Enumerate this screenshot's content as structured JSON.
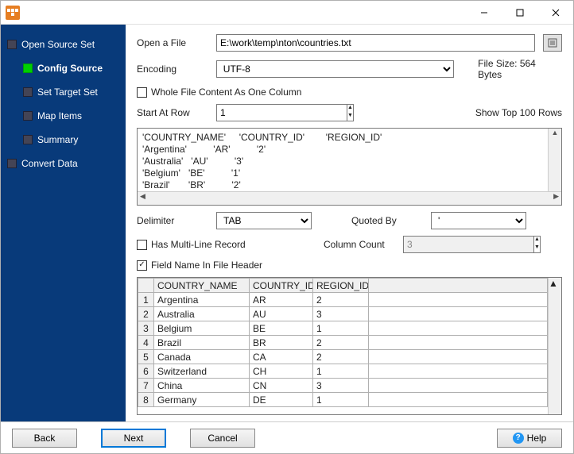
{
  "titlebar": {
    "icon_color": "#e67e22"
  },
  "sidebar": {
    "items": [
      {
        "label": "Open Source Set",
        "type": "root",
        "active": false
      },
      {
        "label": "Config Source",
        "type": "child",
        "active": true
      },
      {
        "label": "Set Target Set",
        "type": "child",
        "active": false
      },
      {
        "label": "Map Items",
        "type": "child",
        "active": false
      },
      {
        "label": "Summary",
        "type": "child",
        "active": false
      },
      {
        "label": "Convert Data",
        "type": "root",
        "active": false
      }
    ]
  },
  "form": {
    "open_file_label": "Open a File",
    "file_path": "E:\\work\\temp\\nton\\countries.txt",
    "encoding_label": "Encoding",
    "encoding_value": "UTF-8",
    "file_size_label": "File Size: 564 Bytes",
    "whole_file_checkbox": "Whole File Content As One Column",
    "whole_file_checked": false,
    "start_row_label": "Start At Row",
    "start_row_value": "1",
    "show_top_label": "Show Top 100 Rows",
    "delimiter_label": "Delimiter",
    "delimiter_value": "TAB",
    "quoted_by_label": "Quoted By",
    "quoted_by_value": "'",
    "multiline_label": "Has Multi-Line Record",
    "multiline_checked": false,
    "column_count_label": "Column Count",
    "column_count_value": "3",
    "field_name_header_label": "Field Name In File Header",
    "field_name_header_checked": true
  },
  "preview_lines": [
    "'COUNTRY_NAME'     'COUNTRY_ID'        'REGION_ID'",
    "'Argentina'          'AR'          '2'",
    "'Australia'   'AU'          '3'",
    "'Belgium'   'BE'          '1'",
    "'Brazil'       'BR'          '2'"
  ],
  "grid": {
    "columns": [
      "COUNTRY_NAME",
      "COUNTRY_ID",
      "REGION_ID"
    ],
    "col_widths": [
      "120px",
      "80px",
      "70px"
    ],
    "rows": [
      [
        "Argentina",
        "AR",
        "2"
      ],
      [
        "Australia",
        "AU",
        "3"
      ],
      [
        "Belgium",
        "BE",
        "1"
      ],
      [
        "Brazil",
        "BR",
        "2"
      ],
      [
        "Canada",
        "CA",
        "2"
      ],
      [
        "Switzerland",
        "CH",
        "1"
      ],
      [
        "China",
        "CN",
        "3"
      ],
      [
        "Germany",
        "DE",
        "1"
      ]
    ]
  },
  "footer": {
    "back": "Back",
    "next": "Next",
    "cancel": "Cancel",
    "help": "Help"
  }
}
